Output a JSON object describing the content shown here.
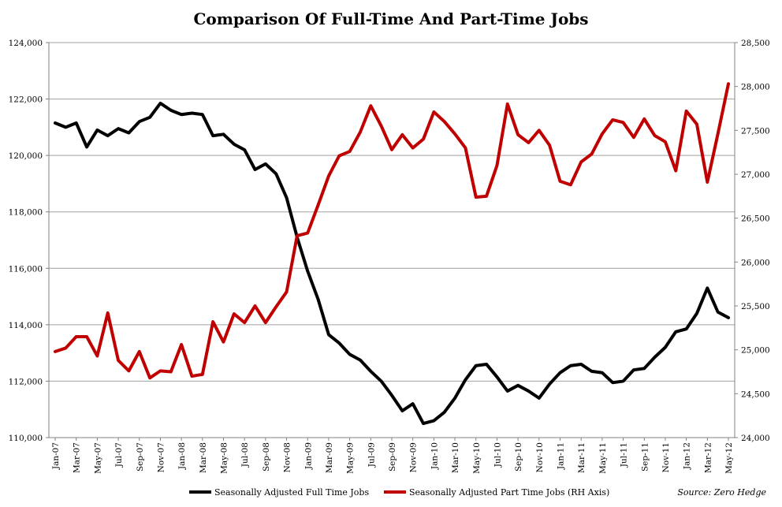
{
  "chart_data": {
    "type": "line",
    "title": "Comparison Of Full-Time And Part-Time Jobs",
    "source": "Source: Zero Hedge",
    "x_labels_visible": [
      "Jan-07",
      "Mar-07",
      "May-07",
      "Jul-07",
      "Sep-07",
      "Nov-07",
      "Jan-08",
      "Mar-08",
      "May-08",
      "Jul-08",
      "Sep-08",
      "Nov-08",
      "Jan-09",
      "Mar-09",
      "May-09",
      "Jul-09",
      "Sep-09",
      "Nov-09",
      "Jan-10",
      "Mar-10",
      "May-10",
      "Jul-10",
      "Sep-10",
      "Nov-10",
      "Jan-11",
      "Mar-11",
      "May-11",
      "Jul-11",
      "Sep-11",
      "Nov-11",
      "Jan-12",
      "Mar-12",
      "May-12"
    ],
    "n_months": 65,
    "left_axis": {
      "ylim": [
        110000,
        124000
      ],
      "ticks": [
        "110,000",
        "112,000",
        "114,000",
        "116,000",
        "118,000",
        "120,000",
        "122,000",
        "124,000"
      ],
      "tick_values": [
        110000,
        112000,
        114000,
        116000,
        118000,
        120000,
        122000,
        124000
      ]
    },
    "right_axis": {
      "ylim": [
        24000,
        28500
      ],
      "ticks": [
        "24,000",
        "24,500",
        "25,000",
        "25,500",
        "26,000",
        "26,500",
        "27,000",
        "27,500",
        "28,000",
        "28,500"
      ],
      "tick_values": [
        24000,
        24500,
        25000,
        25500,
        26000,
        26500,
        27000,
        27500,
        28000,
        28500
      ]
    },
    "grid": true,
    "legend_position": "bottom",
    "series": [
      {
        "name": "Seasonally Adjusted Full Time Jobs",
        "axis": "left",
        "color": "#000000",
        "values": [
          121150,
          121000,
          121150,
          120300,
          120900,
          120700,
          120950,
          120800,
          121200,
          121350,
          121850,
          121600,
          121450,
          121500,
          121450,
          120700,
          120750,
          120400,
          120200,
          119500,
          119700,
          119350,
          118500,
          117100,
          115900,
          114900,
          113650,
          113350,
          112950,
          112750,
          112350,
          112000,
          111500,
          110950,
          111200,
          110500,
          110600,
          110900,
          111400,
          112050,
          112550,
          112600,
          112150,
          111650,
          111850,
          111650,
          111400,
          111900,
          112300,
          112550,
          112600,
          112350,
          112300,
          111950,
          112000,
          112400,
          112450,
          112850,
          113200,
          113750,
          113850,
          114400,
          115300,
          114450,
          114250
        ]
      },
      {
        "name": "Seasonally Adjusted Part Time Jobs (RH Axis)",
        "axis": "right",
        "color": "#c00000",
        "values": [
          24980,
          25020,
          25150,
          25150,
          24930,
          25420,
          24880,
          24760,
          24980,
          24680,
          24760,
          24750,
          25060,
          24700,
          24720,
          25320,
          25090,
          25410,
          25310,
          25500,
          25310,
          25490,
          25660,
          26300,
          26330,
          26650,
          26980,
          27210,
          27260,
          27480,
          27780,
          27550,
          27280,
          27450,
          27300,
          27400,
          27710,
          27600,
          27460,
          27300,
          26740,
          26750,
          27100,
          27800,
          27450,
          27360,
          27500,
          27330,
          26920,
          26880,
          27140,
          27230,
          27460,
          27620,
          27590,
          27420,
          27630,
          27440,
          27370,
          27040,
          27720,
          27570,
          26910,
          27460,
          28030
        ]
      }
    ]
  }
}
